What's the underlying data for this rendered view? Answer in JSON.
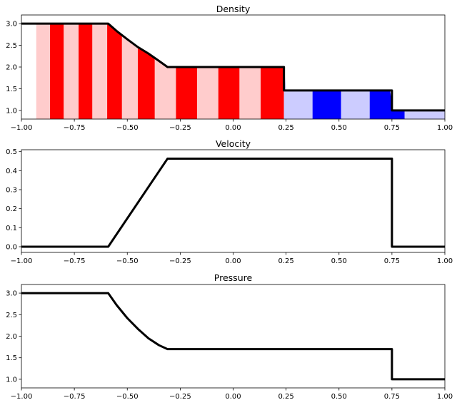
{
  "chart_data": [
    {
      "type": "line",
      "title": "Density",
      "xlim": [
        -1.0,
        1.0
      ],
      "ylim": [
        0.8,
        3.2
      ],
      "x_ticks": [
        -1.0,
        -0.75,
        -0.5,
        -0.25,
        0.0,
        0.25,
        0.5,
        0.75,
        1.0
      ],
      "x_tick_labels": [
        "−1.00",
        "−0.75",
        "−0.50",
        "−0.25",
        "0.00",
        "0.25",
        "0.50",
        "0.75",
        "1.00"
      ],
      "y_ticks": [
        1.0,
        1.5,
        2.0,
        2.5,
        3.0
      ],
      "y_tick_labels": [
        "1.0",
        "1.5",
        "2.0",
        "2.5",
        "3.0"
      ],
      "grid": false,
      "series": [
        {
          "x": [
            -1.0,
            -0.59,
            -0.55,
            -0.5,
            -0.45,
            -0.4,
            -0.35,
            -0.31,
            0.24,
            0.24,
            0.75,
            0.75,
            1.0
          ],
          "values": [
            3.0,
            3.0,
            2.83,
            2.64,
            2.46,
            2.31,
            2.14,
            2.0,
            2.0,
            1.46,
            1.46,
            1.0,
            1.0
          ]
        }
      ],
      "stripes": {
        "colors": {
          "left_dark": "#ff0000",
          "left_light": "#ffcccc",
          "right_dark": "#0000ff",
          "right_light": "#ccccff"
        },
        "interface_x": 0.24,
        "left_boundaries": [
          -0.93,
          -0.865,
          -0.8,
          -0.73,
          -0.665,
          -0.595,
          -0.525,
          -0.45,
          -0.37,
          -0.27,
          -0.17,
          -0.07,
          0.03,
          0.13,
          0.24
        ],
        "right_boundaries": [
          0.24,
          0.375,
          0.51,
          0.645,
          0.81,
          1.0
        ]
      },
      "line_color": "#000000"
    },
    {
      "type": "line",
      "title": "Velocity",
      "xlim": [
        -1.0,
        1.0
      ],
      "ylim": [
        -0.03,
        0.51
      ],
      "x_ticks": [
        -1.0,
        -0.75,
        -0.5,
        -0.25,
        0.0,
        0.25,
        0.5,
        0.75,
        1.0
      ],
      "x_tick_labels": [
        "−1.00",
        "−0.75",
        "−0.50",
        "−0.25",
        "0.00",
        "0.25",
        "0.50",
        "0.75",
        "1.00"
      ],
      "y_ticks": [
        0.0,
        0.1,
        0.2,
        0.3,
        0.4,
        0.5
      ],
      "y_tick_labels": [
        "0.0",
        "0.1",
        "0.2",
        "0.3",
        "0.4",
        "0.5"
      ],
      "grid": false,
      "series": [
        {
          "x": [
            -1.0,
            -0.59,
            -0.31,
            0.75,
            0.75,
            1.0
          ],
          "values": [
            0.0,
            0.0,
            0.463,
            0.463,
            0.0,
            0.0
          ]
        }
      ],
      "line_color": "#000000"
    },
    {
      "type": "line",
      "title": "Pressure",
      "xlim": [
        -1.0,
        1.0
      ],
      "ylim": [
        0.8,
        3.2
      ],
      "x_ticks": [
        -1.0,
        -0.75,
        -0.5,
        -0.25,
        0.0,
        0.25,
        0.5,
        0.75,
        1.0
      ],
      "x_tick_labels": [
        "−1.00",
        "−0.75",
        "−0.50",
        "−0.25",
        "0.00",
        "0.25",
        "0.50",
        "0.75",
        "1.00"
      ],
      "y_ticks": [
        1.0,
        1.5,
        2.0,
        2.5,
        3.0
      ],
      "y_tick_labels": [
        "1.0",
        "1.5",
        "2.0",
        "2.5",
        "3.0"
      ],
      "grid": false,
      "series": [
        {
          "x": [
            -1.0,
            -0.59,
            -0.55,
            -0.5,
            -0.45,
            -0.4,
            -0.35,
            -0.31,
            0.75,
            0.75,
            1.0
          ],
          "values": [
            3.0,
            3.0,
            2.72,
            2.42,
            2.17,
            1.95,
            1.79,
            1.7,
            1.7,
            1.0,
            1.0
          ]
        }
      ],
      "line_color": "#000000"
    }
  ]
}
